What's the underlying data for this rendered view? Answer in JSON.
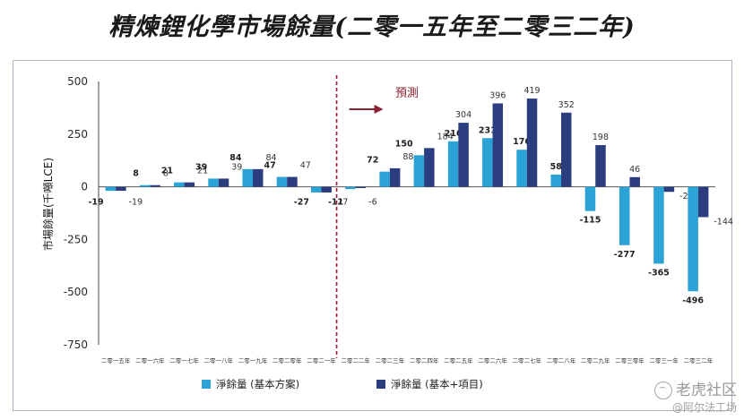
{
  "title": "精煉鋰化學市場餘量(二零一五年至二零三二年)",
  "watermark": {
    "brand": "老虎社区",
    "handle": "@阿尔法工场"
  },
  "chart_data": {
    "type": "bar",
    "title": "精煉鋰化學市場餘量(二零一五年至二零三二年)",
    "ylabel": "市場餘量(千噸LCE)",
    "xlabel": "",
    "ylim": [
      -750,
      500
    ],
    "yticks": [
      500,
      250,
      0,
      -250,
      -500,
      -750
    ],
    "grid": false,
    "legend_position": "bottom",
    "categories": [
      "二零一五年",
      "二零一六年",
      "二零一七年",
      "二零一八年",
      "二零一九年",
      "二零二零年",
      "二零二一年",
      "二零二二年",
      "二零二三年",
      "二零二四年",
      "二零二五年",
      "二零二六年",
      "二零二七年",
      "二零二八年",
      "二零二九年",
      "二零三零年",
      "二零三一年",
      "二零三二年"
    ],
    "series": [
      {
        "name": "淨餘量 (基本方案)",
        "color": "#2ba3d6",
        "values": [
          -19,
          8,
          21,
          39,
          84,
          47,
          -27,
          -11,
          72,
          150,
          216,
          231,
          176,
          58,
          -115,
          -277,
          -365,
          -496
        ]
      },
      {
        "name": "淨餘量 (基本+項目)",
        "color": "#2b3d7e",
        "values": [
          -19,
          8,
          21,
          39,
          84,
          47,
          -27,
          -6,
          88,
          184,
          304,
          396,
          419,
          352,
          198,
          46,
          -24,
          -144
        ]
      }
    ],
    "annotation": {
      "text": "預測",
      "color": "#8b2230"
    }
  }
}
